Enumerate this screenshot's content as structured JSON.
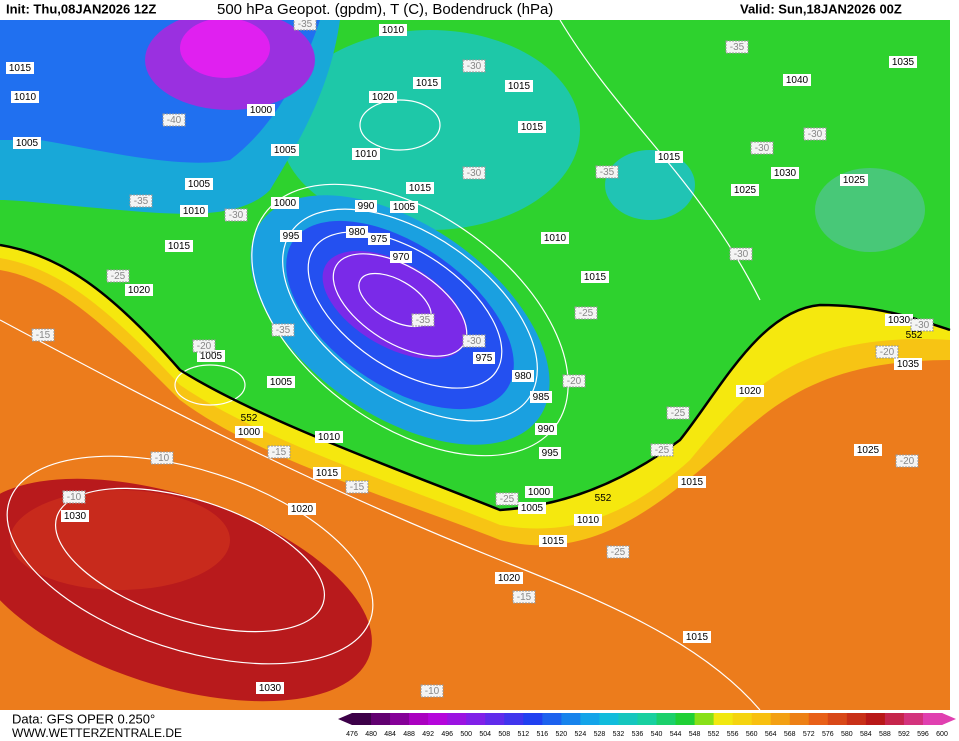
{
  "header": {
    "init": "Init: Thu,08JAN2026 12Z",
    "title": "500 hPa Geopot. (gpdm), T (C), Bodendruck (hPa)",
    "valid": "Valid: Sun,18JAN2026 00Z"
  },
  "footer": {
    "data": "Data: GFS OPER 0.250°",
    "site": "WWW.WETTERZENTRALE.DE"
  },
  "colorbar": {
    "labels": [
      476,
      480,
      484,
      488,
      492,
      496,
      500,
      504,
      508,
      512,
      516,
      520,
      524,
      528,
      532,
      536,
      540,
      544,
      548,
      552,
      556,
      560,
      564,
      568,
      572,
      576,
      580,
      584,
      588,
      592,
      596,
      600
    ]
  },
  "isobar_labels": [
    "1010",
    "1015",
    "1010",
    "1015",
    "1020",
    "1015",
    "1000",
    "1015",
    "1005",
    "1005",
    "1010",
    "1015",
    "1015",
    "1005",
    "990",
    "1005",
    "1010",
    "1000",
    "995",
    "980",
    "975",
    "1010",
    "1015",
    "970",
    "1015",
    "1020",
    "1005",
    "975",
    "1005",
    "980",
    "985",
    "1000",
    "1010",
    "990",
    "995",
    "1015",
    "1000",
    "1005",
    "1020",
    "1010",
    "1015",
    "1020",
    "1015",
    "1030",
    "1030",
    "1040",
    "1035",
    "1030",
    "1025",
    "1025",
    "1020",
    "1025",
    "1015",
    "1030",
    "1035"
  ],
  "temperature_labels": [
    "-35",
    "-30",
    "-35",
    "-40",
    "-30",
    "-30",
    "-30",
    "-35",
    "-35",
    "-30",
    "-30",
    "-25",
    "-35",
    "-35",
    "-25",
    "-15",
    "-20",
    "-30",
    "-20",
    "-25",
    "-20",
    "-30",
    "-15",
    "-25",
    "-10",
    "-20",
    "-15",
    "-10",
    "-25",
    "-25",
    "-15",
    "-10"
  ],
  "height_labels": [
    "552",
    "552",
    "552"
  ]
}
